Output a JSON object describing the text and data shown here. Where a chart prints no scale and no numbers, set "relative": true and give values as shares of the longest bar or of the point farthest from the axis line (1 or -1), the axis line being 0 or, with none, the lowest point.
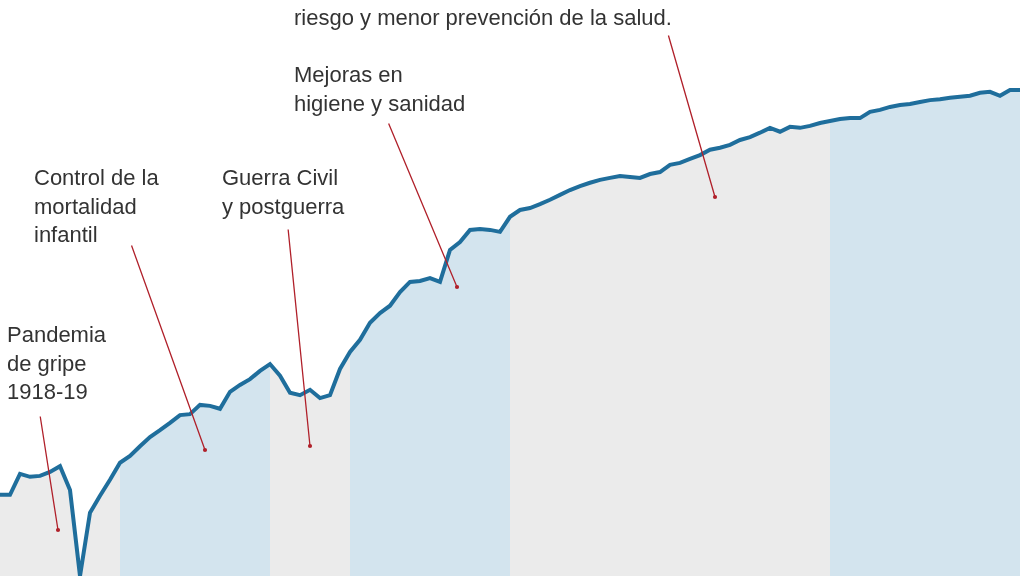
{
  "chart_data": {
    "type": "line",
    "relative": true,
    "categories": [
      null,
      null,
      null,
      null,
      null,
      null,
      null,
      null,
      null,
      null,
      null,
      null,
      null,
      null,
      null,
      null,
      null,
      null,
      null,
      null,
      null,
      null,
      null,
      null,
      null,
      null,
      null,
      null,
      null,
      null,
      null,
      null,
      null,
      null,
      null,
      null,
      null,
      null,
      null,
      null,
      null,
      null,
      null,
      null,
      null,
      null,
      null,
      null,
      null,
      null,
      null,
      null,
      null,
      null,
      null,
      null,
      null,
      null,
      null,
      null,
      null,
      null,
      null,
      null,
      null,
      null,
      null,
      null,
      null,
      null,
      null,
      null,
      null,
      null,
      null,
      null,
      null,
      null,
      null,
      null,
      null,
      null,
      null,
      null,
      null,
      null,
      null,
      null,
      null,
      null,
      null,
      null,
      null,
      null,
      null,
      null,
      null,
      null,
      null,
      null,
      null,
      null,
      null
    ],
    "series": [
      {
        "type": "area",
        "color": "#ebebeb",
        "values": [
          0.167,
          0.167,
          0.21,
          0.204,
          0.206,
          0.214,
          0.226,
          0.177,
          0,
          0.13,
          0.165,
          0.198,
          0.233,
          null,
          null,
          null,
          null,
          null,
          null,
          null,
          null,
          null,
          null,
          null,
          null,
          null,
          null,
          null,
          null,
          null,
          null,
          null,
          null,
          null,
          null,
          null,
          null,
          null,
          null,
          null,
          null,
          null,
          null,
          null,
          null,
          null,
          null,
          null,
          null,
          null,
          null,
          null,
          null,
          null,
          null,
          null,
          null,
          null,
          null,
          null,
          null,
          null,
          null,
          null,
          null,
          null,
          null,
          null,
          null,
          null,
          null,
          null,
          null,
          null,
          null,
          null,
          null,
          null,
          null,
          null,
          null,
          null,
          null,
          null,
          null,
          null,
          null,
          null,
          null,
          null,
          null,
          null,
          null,
          null,
          null,
          null,
          null,
          null,
          null,
          null,
          null,
          null,
          null
        ]
      },
      {
        "type": "area",
        "color": "#d3e4ee",
        "values": [
          null,
          null,
          null,
          null,
          null,
          null,
          null,
          null,
          null,
          null,
          null,
          null,
          0.233,
          0.247,
          0.267,
          0.286,
          0.3,
          0.315,
          0.331,
          0.333,
          0.352,
          0.35,
          0.344,
          0.379,
          0.393,
          0.405,
          0.422,
          0.436,
          null,
          null,
          null,
          null,
          null,
          null,
          null,
          null,
          null,
          null,
          null,
          null,
          null,
          null,
          null,
          null,
          null,
          null,
          null,
          null,
          null,
          null,
          null,
          null,
          null,
          null,
          null,
          null,
          null,
          null,
          null,
          null,
          null,
          null,
          null,
          null,
          null,
          null,
          null,
          null,
          null,
          null,
          null,
          null,
          null,
          null,
          null,
          null,
          null,
          null,
          null,
          null,
          null,
          null,
          null,
          null,
          null,
          null,
          null,
          null,
          null,
          null,
          null,
          null,
          null,
          null,
          null,
          null,
          null,
          null,
          null,
          null,
          null,
          null,
          null
        ]
      },
      {
        "type": "area",
        "color": "#ebebeb",
        "values": [
          null,
          null,
          null,
          null,
          null,
          null,
          null,
          null,
          null,
          null,
          null,
          null,
          null,
          null,
          null,
          null,
          null,
          null,
          null,
          null,
          null,
          null,
          null,
          null,
          null,
          null,
          null,
          0.436,
          0.412,
          0.377,
          0.372,
          0.383,
          0.366,
          0.372,
          0.426,
          0.461,
          null,
          null,
          null,
          null,
          null,
          null,
          null,
          null,
          null,
          null,
          null,
          null,
          null,
          null,
          null,
          null,
          null,
          null,
          null,
          null,
          null,
          null,
          null,
          null,
          null,
          null,
          null,
          null,
          null,
          null,
          null,
          null,
          null,
          null,
          null,
          null,
          null,
          null,
          null,
          null,
          null,
          null,
          null,
          null,
          null,
          null,
          null,
          null,
          null,
          null,
          null,
          null,
          null,
          null,
          null,
          null,
          null,
          null,
          null,
          null,
          null,
          null,
          null,
          null,
          null,
          null,
          null
        ]
      },
      {
        "type": "area",
        "color": "#d3e4ee",
        "values": [
          null,
          null,
          null,
          null,
          null,
          null,
          null,
          null,
          null,
          null,
          null,
          null,
          null,
          null,
          null,
          null,
          null,
          null,
          null,
          null,
          null,
          null,
          null,
          null,
          null,
          null,
          null,
          null,
          null,
          null,
          null,
          null,
          null,
          null,
          null,
          0.461,
          0.486,
          0.521,
          0.541,
          0.556,
          0.584,
          0.605,
          0.607,
          0.613,
          0.605,
          0.671,
          0.687,
          0.712,
          0.714,
          0.712,
          0.708,
          0.739,
          null,
          null,
          null,
          null,
          null,
          null,
          null,
          null,
          null,
          null,
          null,
          null,
          null,
          null,
          null,
          null,
          null,
          null,
          null,
          null,
          null,
          null,
          null,
          null,
          null,
          null,
          null,
          null,
          null,
          null,
          null,
          null,
          null,
          null,
          null,
          null,
          null,
          null,
          null,
          null,
          null,
          null,
          null,
          null,
          null,
          null,
          null,
          null,
          null,
          null,
          null
        ]
      },
      {
        "type": "area",
        "color": "#ebebeb",
        "values": [
          null,
          null,
          null,
          null,
          null,
          null,
          null,
          null,
          null,
          null,
          null,
          null,
          null,
          null,
          null,
          null,
          null,
          null,
          null,
          null,
          null,
          null,
          null,
          null,
          null,
          null,
          null,
          null,
          null,
          null,
          null,
          null,
          null,
          null,
          null,
          null,
          null,
          null,
          null,
          null,
          null,
          null,
          null,
          null,
          null,
          null,
          null,
          null,
          null,
          null,
          null,
          0.739,
          0.753,
          0.757,
          0.765,
          0.774,
          0.784,
          0.794,
          0.802,
          0.809,
          0.815,
          0.819,
          0.823,
          0.821,
          0.819,
          0.827,
          0.831,
          0.846,
          0.85,
          0.858,
          0.866,
          0.877,
          0.881,
          0.887,
          0.897,
          0.903,
          0.912,
          0.922,
          0.914,
          0.924,
          0.922,
          0.926,
          0.932,
          0.936,
          null,
          null,
          null,
          null,
          null,
          null,
          null,
          null,
          null,
          null,
          null,
          null,
          null,
          null,
          null,
          null,
          null,
          null,
          null
        ]
      },
      {
        "type": "area",
        "color": "#d3e4ee",
        "values": [
          null,
          null,
          null,
          null,
          null,
          null,
          null,
          null,
          null,
          null,
          null,
          null,
          null,
          null,
          null,
          null,
          null,
          null,
          null,
          null,
          null,
          null,
          null,
          null,
          null,
          null,
          null,
          null,
          null,
          null,
          null,
          null,
          null,
          null,
          null,
          null,
          null,
          null,
          null,
          null,
          null,
          null,
          null,
          null,
          null,
          null,
          null,
          null,
          null,
          null,
          null,
          null,
          null,
          null,
          null,
          null,
          null,
          null,
          null,
          null,
          null,
          null,
          null,
          null,
          null,
          null,
          null,
          null,
          null,
          null,
          null,
          null,
          null,
          null,
          null,
          null,
          null,
          null,
          null,
          null,
          null,
          null,
          null,
          0.936,
          0.94,
          0.942,
          0.942,
          0.955,
          0.959,
          0.965,
          0.969,
          0.971,
          0.975,
          0.979,
          0.981,
          0.984,
          0.986,
          0.988,
          0.994,
          0.996,
          0.988,
          1,
          1
        ]
      },
      {
        "color": "#1f6e9c",
        "values": [
          0.167,
          0.167,
          0.21,
          0.204,
          0.206,
          0.214,
          0.226,
          0.177,
          0,
          0.13,
          0.165,
          0.198,
          0.233,
          0.247,
          0.267,
          0.286,
          0.3,
          0.315,
          0.331,
          0.333,
          0.352,
          0.35,
          0.344,
          0.379,
          0.393,
          0.405,
          0.422,
          0.436,
          0.412,
          0.377,
          0.372,
          0.383,
          0.366,
          0.372,
          0.426,
          0.461,
          0.486,
          0.521,
          0.541,
          0.556,
          0.584,
          0.605,
          0.607,
          0.613,
          0.605,
          0.671,
          0.687,
          0.712,
          0.714,
          0.712,
          0.708,
          0.739,
          0.753,
          0.757,
          0.765,
          0.774,
          0.784,
          0.794,
          0.802,
          0.809,
          0.815,
          0.819,
          0.823,
          0.821,
          0.819,
          0.827,
          0.831,
          0.846,
          0.85,
          0.858,
          0.866,
          0.877,
          0.881,
          0.887,
          0.897,
          0.903,
          0.912,
          0.922,
          0.914,
          0.924,
          0.922,
          0.926,
          0.932,
          0.936,
          0.94,
          0.942,
          0.942,
          0.955,
          0.959,
          0.965,
          0.969,
          0.971,
          0.975,
          0.979,
          0.981,
          0.984,
          0.986,
          0.988,
          0.994,
          0.996,
          0.988,
          1,
          1
        ]
      }
    ],
    "annotations": [
      "Pandemia\nde gripe\n1918-19",
      "Control de la\nmortalidad\ninfantil",
      "Guerra Civil\ny postguerra",
      "Mejoras en\nhigiene y sanidad",
      "riesgo y menor prevención de la salud."
    ],
    "line_style": "solid",
    "marker": "none"
  }
}
